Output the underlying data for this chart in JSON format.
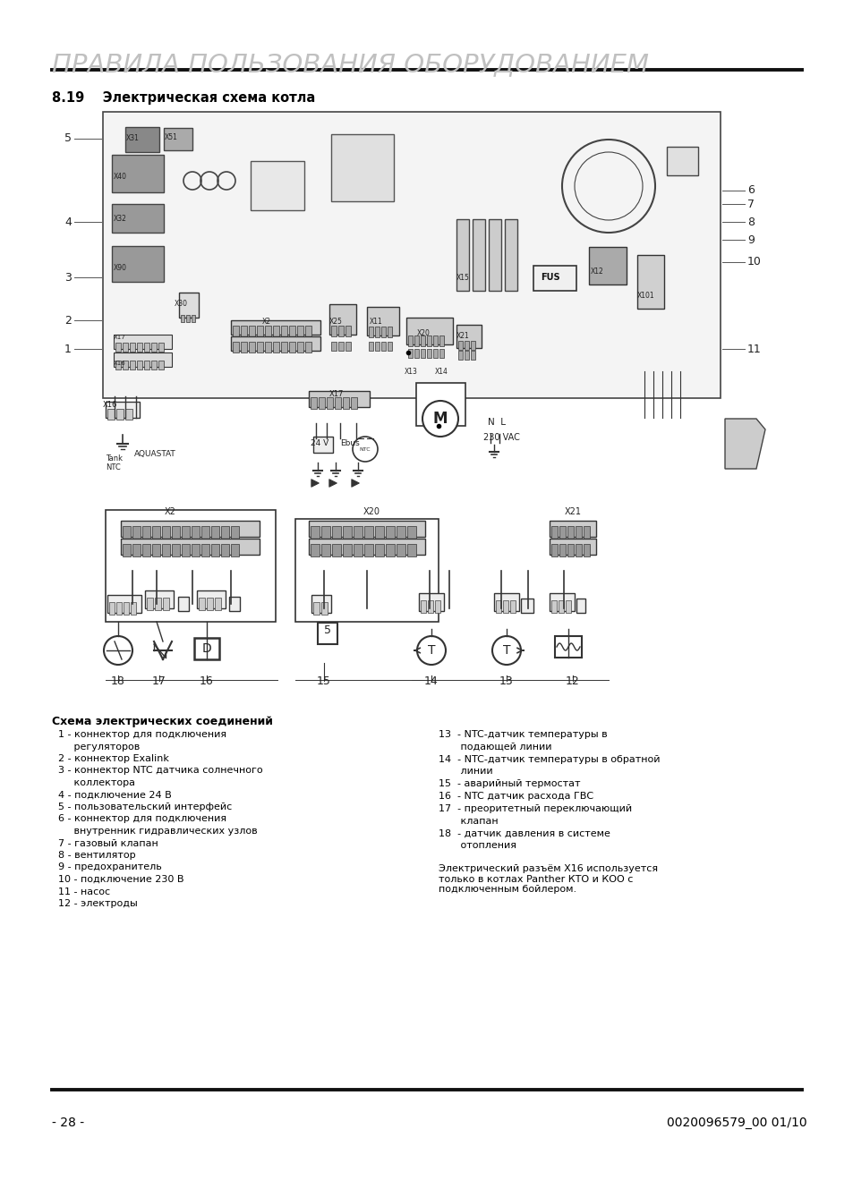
{
  "title": "ПРАВИЛА ПОЛЬЗОВАНИЯ ОБОРУДОВАНИЕМ",
  "title_color": "#c0c0c0",
  "section": "8.19    Электрическая схема котла",
  "page_number": "- 28 -",
  "doc_number": "0020096579_00 01/10",
  "bg_color": "#ffffff",
  "text_color": "#000000",
  "legend_title": "Схема электрических соединений",
  "legend_left": [
    "  1 - коннектор для подключения",
    "       регуляторов",
    "  2 - коннектор Exalink",
    "  3 - коннектор NTC датчика солнечного",
    "       коллектора",
    "  4 - подключение 24 В",
    "  5 - пользовательский интерфейс",
    "  6 - коннектор для подключения",
    "       внутренник гидравлических узлов",
    "  7 - газовый клапан",
    "  8 - вентилятор",
    "  9 - предохранитель",
    "  10 - подключение 230 В",
    "  11 - насос",
    "  12 - электроды"
  ],
  "legend_right": [
    "13  - NTC-датчик температуры в",
    "       подающей линии",
    "14  - NTC-датчик температуры в обратной",
    "       линии",
    "15  - аварийный термостат",
    "16  - NTC датчик расхода ГВС",
    "17  - преоритетный переключающий",
    "       клапан",
    "18  - датчик давления в системе",
    "       отопления"
  ],
  "note": "Электрический разъём X16 используется\nтолько в котлах Panther КТО и КОО с\nподключенным бойлером."
}
